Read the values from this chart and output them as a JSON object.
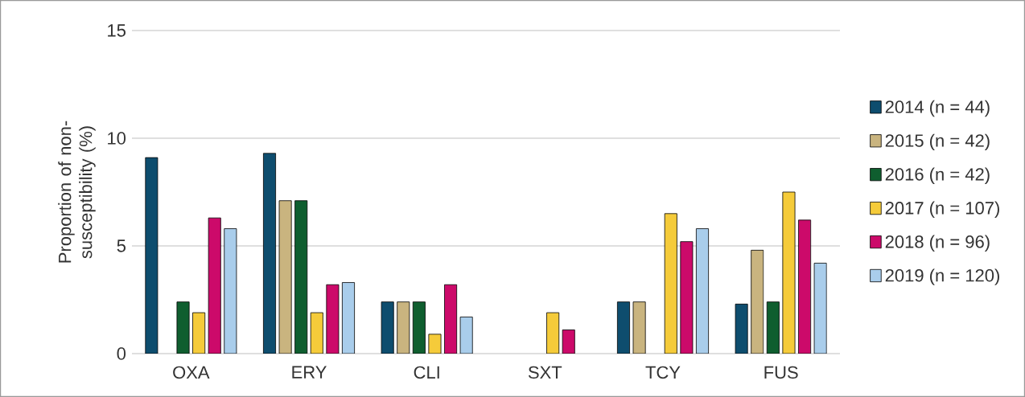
{
  "chart_data": {
    "type": "bar",
    "ylabel": "Proportion of non-susceptibility (%)",
    "categories": [
      "OXA",
      "ERY",
      "CLI",
      "SXT",
      "TCY",
      "FUS"
    ],
    "series": [
      {
        "name": "2014 (n = 44)",
        "color": "#0e4d6e",
        "values": [
          9.1,
          9.3,
          2.4,
          null,
          2.4,
          2.3
        ]
      },
      {
        "name": "2015 (n = 42)",
        "color": "#c9b47f",
        "values": [
          null,
          7.1,
          2.4,
          null,
          2.4,
          4.8
        ]
      },
      {
        "name": "2016 (n = 42)",
        "color": "#0f5e2f",
        "values": [
          2.4,
          7.1,
          2.4,
          null,
          null,
          2.4
        ]
      },
      {
        "name": "2017 (n = 107)",
        "color": "#f5cb3a",
        "values": [
          1.9,
          1.9,
          0.9,
          1.9,
          6.5,
          7.5
        ]
      },
      {
        "name": "2018 (n = 96)",
        "color": "#cc0a6a",
        "values": [
          6.3,
          3.2,
          3.2,
          1.1,
          5.2,
          6.2
        ]
      },
      {
        "name": "2019 (n = 120)",
        "color": "#a9cdeb",
        "values": [
          5.8,
          3.3,
          1.7,
          null,
          5.8,
          4.2
        ]
      }
    ],
    "ylim": [
      0,
      15
    ],
    "yticks": [
      0,
      5,
      10,
      15
    ],
    "grid": "y",
    "legend": "right"
  }
}
